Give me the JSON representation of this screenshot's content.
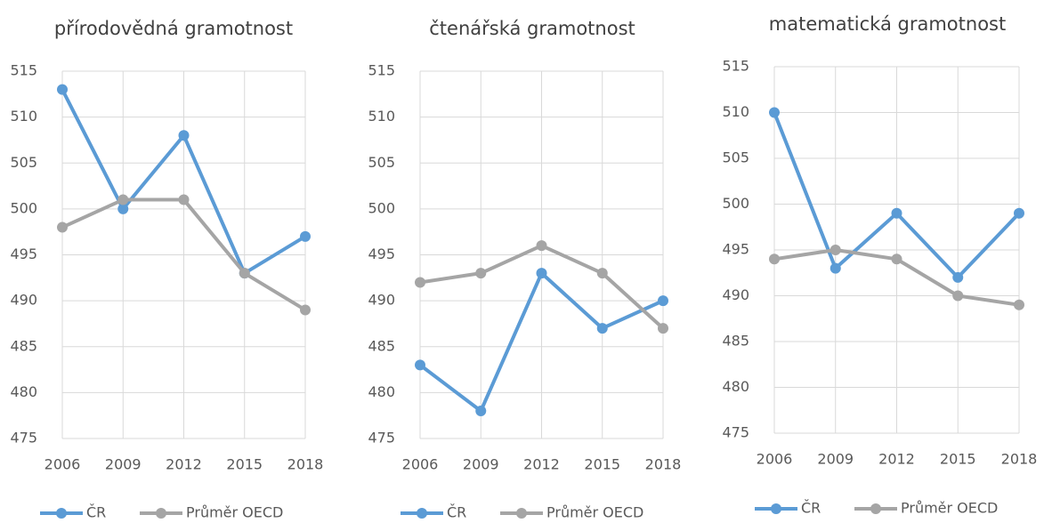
{
  "chart_data": [
    {
      "type": "line",
      "title": "přírodovědná gramotnost",
      "categories": [
        "2006",
        "2009",
        "2012",
        "2015",
        "2018"
      ],
      "series": [
        {
          "name": "ČR",
          "color": "#5b9bd5",
          "values": [
            513,
            500,
            508,
            493,
            497
          ]
        },
        {
          "name": "Průměr OECD",
          "color": "#a5a5a5",
          "values": [
            498,
            501,
            501,
            493,
            489
          ]
        }
      ],
      "ylim": [
        475,
        515
      ],
      "yticks": [
        475,
        480,
        485,
        490,
        495,
        500,
        505,
        510,
        515
      ],
      "grid": true,
      "legend": "bottom"
    },
    {
      "type": "line",
      "title": "čtenářská gramotnost",
      "categories": [
        "2006",
        "2009",
        "2012",
        "2015",
        "2018"
      ],
      "series": [
        {
          "name": "ČR",
          "color": "#5b9bd5",
          "values": [
            483,
            478,
            493,
            487,
            490
          ]
        },
        {
          "name": "Průměr OECD",
          "color": "#a5a5a5",
          "values": [
            492,
            493,
            496,
            493,
            487
          ]
        }
      ],
      "ylim": [
        475,
        515
      ],
      "yticks": [
        475,
        480,
        485,
        490,
        495,
        500,
        505,
        510,
        515
      ],
      "grid": true,
      "legend": "bottom"
    },
    {
      "type": "line",
      "title": "matematická gramotnost",
      "categories": [
        "2006",
        "2009",
        "2012",
        "2015",
        "2018"
      ],
      "series": [
        {
          "name": "ČR",
          "color": "#5b9bd5",
          "values": [
            510,
            493,
            499,
            492,
            499
          ]
        },
        {
          "name": "Průměr OECD",
          "color": "#a5a5a5",
          "values": [
            494,
            495,
            494,
            490,
            489
          ]
        }
      ],
      "ylim": [
        475,
        515
      ],
      "yticks": [
        475,
        480,
        485,
        490,
        495,
        500,
        505,
        510,
        515
      ],
      "grid": true,
      "legend": "bottom"
    }
  ]
}
